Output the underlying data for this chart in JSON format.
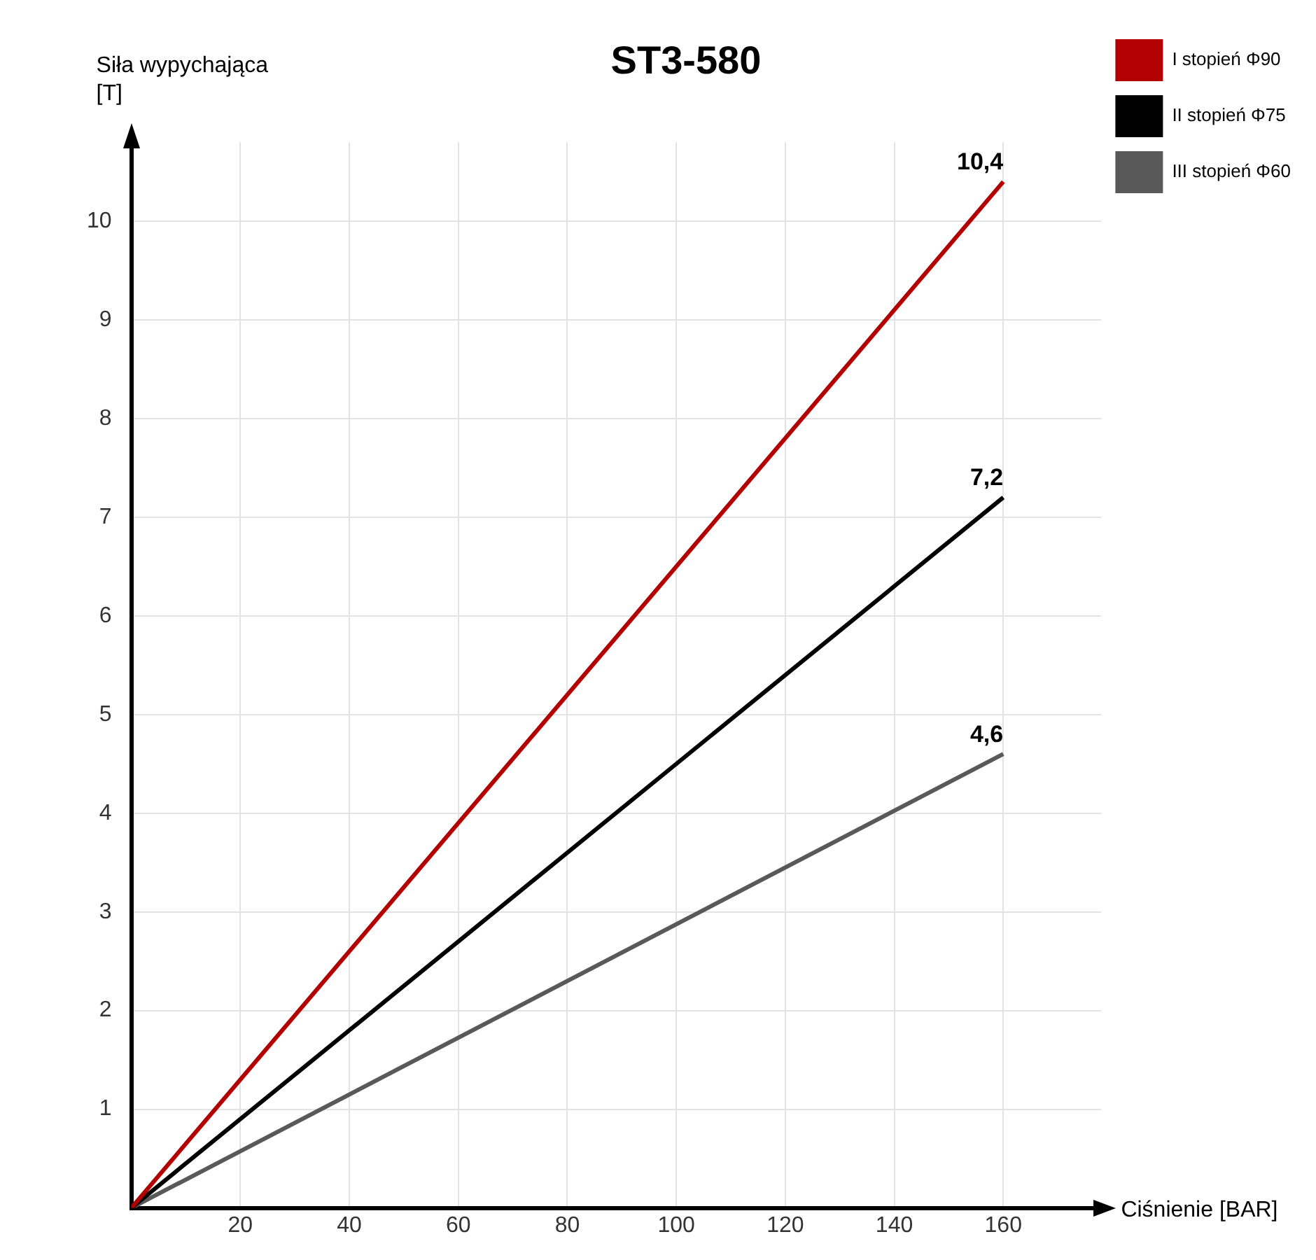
{
  "chart_data": {
    "type": "line",
    "title": "ST3-580",
    "xlabel": "Ciśnienie [BAR]",
    "ylabel": "Siła wypychająca [T]",
    "x": [
      0,
      160
    ],
    "series": [
      {
        "name": "I stopień Φ90",
        "color": "#b30000",
        "values": [
          0,
          10.4
        ],
        "value_labels": [
          null,
          "10,4"
        ]
      },
      {
        "name": "II stopień Φ75",
        "color": "#000000",
        "values": [
          0,
          7.2
        ],
        "value_labels": [
          null,
          "7,2"
        ]
      },
      {
        "name": "III stopień Φ60",
        "color": "#595959",
        "values": [
          0,
          4.6
        ],
        "value_labels": [
          null,
          "4,6"
        ]
      }
    ],
    "xlim": [
      0,
      178
    ],
    "ylim": [
      0,
      10.8
    ],
    "xticks": [
      {
        "value": 0,
        "label": null
      },
      20,
      40,
      60,
      80,
      100,
      120,
      140,
      160
    ],
    "yticks": [
      {
        "value": 0,
        "label": null
      },
      1,
      2,
      3,
      4,
      5,
      6,
      7,
      8,
      9,
      10
    ],
    "grid": true,
    "legend": "top right",
    "line_style": "solid"
  }
}
